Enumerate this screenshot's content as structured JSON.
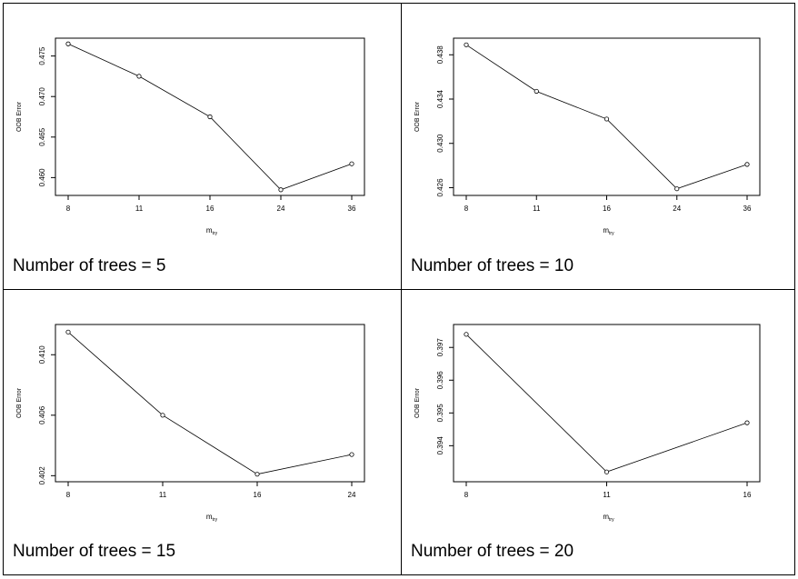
{
  "panels": [
    {
      "caption": "Number of trees = 5",
      "chart_data": {
        "type": "line",
        "x": [
          "8",
          "11",
          "16",
          "24",
          "36"
        ],
        "y": [
          0.4765,
          0.4725,
          0.4675,
          0.4585,
          0.4617
        ],
        "xlabel": "m",
        "xlabel_sub": "try",
        "ylabel": "OOB Error",
        "ylim": [
          0.4578,
          0.4772
        ],
        "yticks": [
          "0.460",
          "0.465",
          "0.470",
          "0.475"
        ],
        "ytick_values": [
          0.46,
          0.465,
          0.47,
          0.475
        ],
        "grid": false,
        "markers": "open-circle"
      }
    },
    {
      "caption": "Number of trees = 10",
      "chart_data": {
        "type": "line",
        "x": [
          "8",
          "11",
          "16",
          "24",
          "36"
        ],
        "y": [
          0.4389,
          0.4347,
          0.4322,
          0.4259,
          0.4281
        ],
        "xlabel": "m",
        "xlabel_sub": "try",
        "ylabel": "OOB Error",
        "ylim": [
          0.4253,
          0.4395
        ],
        "yticks": [
          "0.426",
          "0.430",
          "0.434",
          "0.438"
        ],
        "ytick_values": [
          0.426,
          0.43,
          0.434,
          0.438
        ],
        "grid": false,
        "markers": "open-circle"
      }
    },
    {
      "caption": "Number of trees = 15",
      "chart_data": {
        "type": "line",
        "x": [
          "8",
          "11",
          "16",
          "24"
        ],
        "y": [
          0.4115,
          0.406,
          0.4021,
          0.4034
        ],
        "xlabel": "m",
        "xlabel_sub": "try",
        "ylabel": "OOB Error",
        "ylim": [
          0.4016,
          0.412
        ],
        "yticks": [
          "0.402",
          "0.406",
          "0.410"
        ],
        "ytick_values": [
          0.402,
          0.406,
          0.41
        ],
        "grid": false,
        "markers": "open-circle"
      }
    },
    {
      "caption": "Number of trees = 20",
      "chart_data": {
        "type": "line",
        "x": [
          "8",
          "11",
          "16"
        ],
        "y": [
          0.3974,
          0.3932,
          0.3947
        ],
        "xlabel": "m",
        "xlabel_sub": "try",
        "ylabel": "OOB Error",
        "ylim": [
          0.3929,
          0.3977
        ],
        "yticks": [
          "0.394",
          "0.395",
          "0.396",
          "0.397"
        ],
        "ytick_values": [
          0.394,
          0.395,
          0.396,
          0.397
        ],
        "grid": false,
        "markers": "open-circle"
      }
    }
  ]
}
